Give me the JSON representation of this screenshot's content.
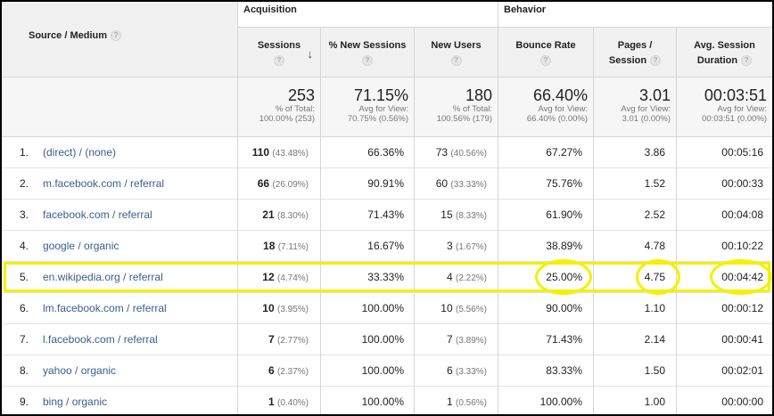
{
  "header": {
    "source_medium": "Source / Medium",
    "groups": {
      "acquisition": "Acquisition",
      "behavior": "Behavior"
    },
    "columns": {
      "sessions": "Sessions",
      "new_sessions": "% New Sessions",
      "new_users": "New Users",
      "bounce_rate": "Bounce Rate",
      "pages_session": "Pages / Session",
      "avg_duration": "Avg. Session Duration"
    },
    "help_glyph": "?",
    "sort_glyph": "↓"
  },
  "totals": {
    "sessions": {
      "value": "253",
      "sub1": "% of Total:",
      "sub2": "100.00% (253)"
    },
    "new_sessions": {
      "value": "71.15%",
      "sub1": "Avg for View:",
      "sub2": "70.75% (0.56%)"
    },
    "new_users": {
      "value": "180",
      "sub1": "% of Total:",
      "sub2": "100.56% (179)"
    },
    "bounce_rate": {
      "value": "66.40%",
      "sub1": "Avg for View:",
      "sub2": "66.40% (0.00%)"
    },
    "pages_session": {
      "value": "3.01",
      "sub1": "Avg for View:",
      "sub2": "3.01 (0.00%)"
    },
    "avg_duration": {
      "value": "00:03:51",
      "sub1": "Avg for View:",
      "sub2": "00:03:51 (0.00%)"
    }
  },
  "rows": [
    {
      "idx": "1.",
      "source": "(direct) / (none)",
      "sessions": "110",
      "sessions_pct": "(43.48%)",
      "new_sessions": "66.36%",
      "new_users": "73",
      "new_users_pct": "(40.56%)",
      "bounce_rate": "67.27%",
      "pages_session": "3.86",
      "avg_duration": "00:05:16"
    },
    {
      "idx": "2.",
      "source": "m.facebook.com / referral",
      "sessions": "66",
      "sessions_pct": "(26.09%)",
      "new_sessions": "90.91%",
      "new_users": "60",
      "new_users_pct": "(33.33%)",
      "bounce_rate": "75.76%",
      "pages_session": "1.52",
      "avg_duration": "00:00:33"
    },
    {
      "idx": "3.",
      "source": "facebook.com / referral",
      "sessions": "21",
      "sessions_pct": "(8.30%)",
      "new_sessions": "71.43%",
      "new_users": "15",
      "new_users_pct": "(8.33%)",
      "bounce_rate": "61.90%",
      "pages_session": "2.52",
      "avg_duration": "00:04:08"
    },
    {
      "idx": "4.",
      "source": "google / organic",
      "sessions": "18",
      "sessions_pct": "(7.11%)",
      "new_sessions": "16.67%",
      "new_users": "3",
      "new_users_pct": "(1.67%)",
      "bounce_rate": "38.89%",
      "pages_session": "4.78",
      "avg_duration": "00:10:22"
    },
    {
      "idx": "5.",
      "source": "en.wikipedia.org / referral",
      "sessions": "12",
      "sessions_pct": "(4.74%)",
      "new_sessions": "33.33%",
      "new_users": "4",
      "new_users_pct": "(2.22%)",
      "bounce_rate": "25.00%",
      "pages_session": "4.75",
      "avg_duration": "00:04:42"
    },
    {
      "idx": "6.",
      "source": "lm.facebook.com / referral",
      "sessions": "10",
      "sessions_pct": "(3.95%)",
      "new_sessions": "100.00%",
      "new_users": "10",
      "new_users_pct": "(5.56%)",
      "bounce_rate": "90.00%",
      "pages_session": "1.10",
      "avg_duration": "00:00:12"
    },
    {
      "idx": "7.",
      "source": "l.facebook.com / referral",
      "sessions": "7",
      "sessions_pct": "(2.77%)",
      "new_sessions": "100.00%",
      "new_users": "7",
      "new_users_pct": "(3.89%)",
      "bounce_rate": "71.43%",
      "pages_session": "2.14",
      "avg_duration": "00:00:41"
    },
    {
      "idx": "8.",
      "source": "yahoo / organic",
      "sessions": "6",
      "sessions_pct": "(2.37%)",
      "new_sessions": "100.00%",
      "new_users": "6",
      "new_users_pct": "(3.33%)",
      "bounce_rate": "83.33%",
      "pages_session": "1.50",
      "avg_duration": "00:02:01"
    },
    {
      "idx": "9.",
      "source": "bing / organic",
      "sessions": "1",
      "sessions_pct": "(0.40%)",
      "new_sessions": "100.00%",
      "new_users": "1",
      "new_users_pct": "(0.56%)",
      "bounce_rate": "100.00%",
      "pages_session": "1.00",
      "avg_duration": "00:00:00"
    }
  ],
  "highlight": {
    "row_index": 4,
    "color": "#f4f000"
  }
}
